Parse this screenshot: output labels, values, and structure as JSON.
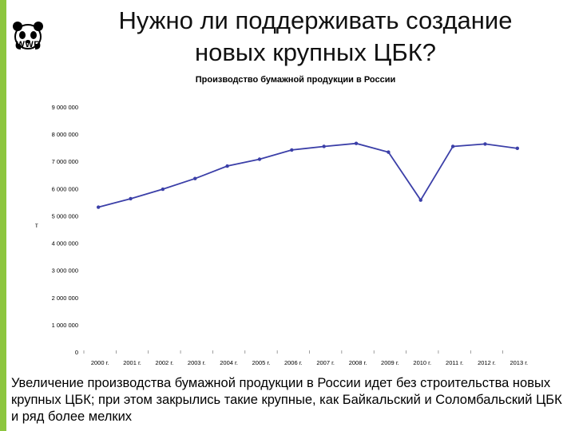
{
  "slide": {
    "title_line1": "Нужно ли поддерживать создание",
    "title_line2": "новых крупных ЦБК?",
    "caption": "Увеличение производства бумажной продукции в России идет без строительства новых крупных ЦБК; при этом закрылись такие крупные, как Байкальский и Соломбальский ЦБК и ряд более мелких",
    "logo_text": "WWF",
    "accent_color": "#8dc63f"
  },
  "chart_data": {
    "type": "line",
    "title": "Производство бумажной продукции в России",
    "ylabel": "т",
    "xlabel": "",
    "categories": [
      "2000 г.",
      "2001 г.",
      "2002 г.",
      "2003 г.",
      "2004 г.",
      "2005 г.",
      "2006 г.",
      "2007 г.",
      "2008 г.",
      "2009 г.",
      "2010 г.",
      "2011 г.",
      "2012 г.",
      "2013 г."
    ],
    "series": [
      {
        "values": [
          5320000,
          5630000,
          5980000,
          6370000,
          6830000,
          7080000,
          7420000,
          7550000,
          7660000,
          7340000,
          5580000,
          7550000,
          7640000,
          7480000
        ]
      }
    ],
    "ylim": [
      0,
      9000000
    ],
    "yticks": [
      0,
      1000000,
      2000000,
      3000000,
      4000000,
      5000000,
      6000000,
      7000000,
      8000000,
      9000000
    ],
    "ytick_labels": [
      "0",
      "1 000 000",
      "2 000 000",
      "3 000 000",
      "4 000 000",
      "5 000 000",
      "6 000 000",
      "7 000 000",
      "8 000 000",
      "9 000 000"
    ],
    "line_color": "#3b3fa8",
    "grid": false
  }
}
